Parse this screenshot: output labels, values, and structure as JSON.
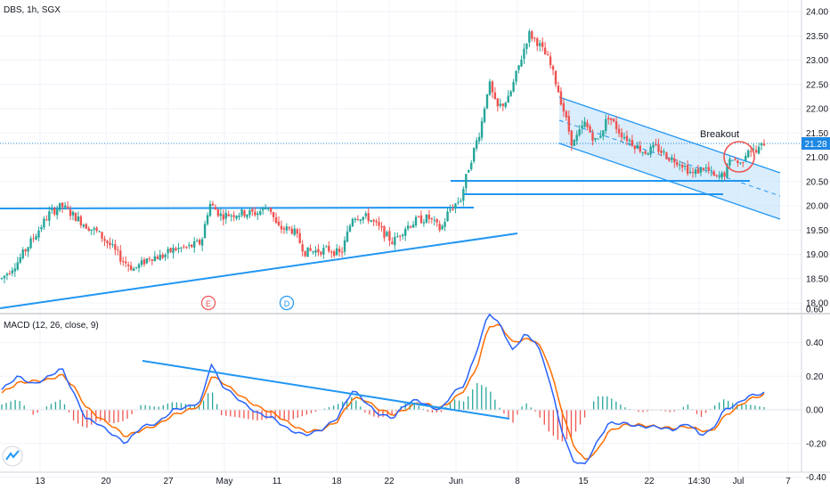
{
  "symbol": {
    "title": "DBS, 1h, SGX"
  },
  "macd": {
    "title": "MACD (12, 26, close, 9)"
  },
  "current_price": {
    "label": "21.28",
    "value": 21.28,
    "color": "#1e88e5"
  },
  "annotations": {
    "breakout": "Breakout",
    "earnings_marker": "E",
    "dividend_marker": "D"
  },
  "colors": {
    "up": "#26a69a",
    "down": "#ef5350",
    "trendline": "#2196f3",
    "macd_line": "#2962ff",
    "signal_line": "#ff6d00",
    "channel_fill": "#bbdefb",
    "marker_red": "#ef5350",
    "marker_blue": "#2196f3"
  },
  "chart_data": [
    {
      "type": "candlestick",
      "title": "DBS, 1h, SGX",
      "y_ticks": [
        "24.00",
        "23.50",
        "23.00",
        "22.50",
        "22.00",
        "21.50",
        "21.00",
        "20.50",
        "20.00",
        "19.50",
        "19.00",
        "18.50",
        "18.00"
      ],
      "ylim": [
        17.9,
        24.05
      ],
      "x_ticks": [
        "13",
        "20",
        "27",
        "May",
        "11",
        "18",
        "22",
        "Jun",
        "8",
        "15",
        "22",
        "14:30",
        "Jul",
        "7"
      ],
      "trend": [
        {
          "w": 0.0,
          "c": 18.5
        },
        {
          "w": 0.02,
          "c": 18.85
        },
        {
          "w": 0.04,
          "c": 19.35
        },
        {
          "w": 0.06,
          "c": 19.85
        },
        {
          "w": 0.075,
          "c": 20.0
        },
        {
          "w": 0.09,
          "c": 19.8
        },
        {
          "w": 0.105,
          "c": 19.6
        },
        {
          "w": 0.12,
          "c": 19.45
        },
        {
          "w": 0.135,
          "c": 19.2
        },
        {
          "w": 0.15,
          "c": 18.9
        },
        {
          "w": 0.165,
          "c": 18.7
        },
        {
          "w": 0.175,
          "c": 18.8
        },
        {
          "w": 0.185,
          "c": 18.95
        },
        {
          "w": 0.2,
          "c": 18.95
        },
        {
          "w": 0.215,
          "c": 19.1
        },
        {
          "w": 0.235,
          "c": 19.15
        },
        {
          "w": 0.25,
          "c": 19.25
        },
        {
          "w": 0.26,
          "c": 20.05
        },
        {
          "w": 0.275,
          "c": 19.8
        },
        {
          "w": 0.3,
          "c": 19.85
        },
        {
          "w": 0.32,
          "c": 19.85
        },
        {
          "w": 0.335,
          "c": 20.0
        },
        {
          "w": 0.345,
          "c": 19.55
        },
        {
          "w": 0.365,
          "c": 19.5
        },
        {
          "w": 0.38,
          "c": 19.05
        },
        {
          "w": 0.41,
          "c": 19.1
        },
        {
          "w": 0.425,
          "c": 19.0
        },
        {
          "w": 0.44,
          "c": 19.8
        },
        {
          "w": 0.46,
          "c": 19.75
        },
        {
          "w": 0.475,
          "c": 19.5
        },
        {
          "w": 0.49,
          "c": 19.25
        },
        {
          "w": 0.505,
          "c": 19.55
        },
        {
          "w": 0.52,
          "c": 19.7
        },
        {
          "w": 0.535,
          "c": 19.75
        },
        {
          "w": 0.55,
          "c": 19.5
        },
        {
          "w": 0.56,
          "c": 19.9
        },
        {
          "w": 0.575,
          "c": 20.15
        },
        {
          "w": 0.585,
          "c": 20.8
        },
        {
          "w": 0.6,
          "c": 21.6
        },
        {
          "w": 0.61,
          "c": 22.55
        },
        {
          "w": 0.62,
          "c": 22.0
        },
        {
          "w": 0.635,
          "c": 22.2
        },
        {
          "w": 0.65,
          "c": 23.0
        },
        {
          "w": 0.66,
          "c": 23.55
        },
        {
          "w": 0.67,
          "c": 23.4
        },
        {
          "w": 0.685,
          "c": 23.0
        },
        {
          "w": 0.695,
          "c": 22.5
        },
        {
          "w": 0.705,
          "c": 21.9
        },
        {
          "w": 0.715,
          "c": 21.25
        },
        {
          "w": 0.73,
          "c": 21.7
        },
        {
          "w": 0.745,
          "c": 21.3
        },
        {
          "w": 0.76,
          "c": 21.85
        },
        {
          "w": 0.775,
          "c": 21.5
        },
        {
          "w": 0.79,
          "c": 21.3
        },
        {
          "w": 0.805,
          "c": 21.1
        },
        {
          "w": 0.82,
          "c": 21.2
        },
        {
          "w": 0.835,
          "c": 21.0
        },
        {
          "w": 0.85,
          "c": 20.9
        },
        {
          "w": 0.865,
          "c": 20.65
        },
        {
          "w": 0.88,
          "c": 20.8
        },
        {
          "w": 0.895,
          "c": 20.55
        },
        {
          "w": 0.905,
          "c": 20.65
        },
        {
          "w": 0.915,
          "c": 21.0
        },
        {
          "w": 0.925,
          "c": 20.85
        },
        {
          "w": 0.935,
          "c": 21.2
        },
        {
          "w": 0.945,
          "c": 21.1
        },
        {
          "w": 0.955,
          "c": 21.3
        }
      ]
    },
    {
      "type": "macd",
      "title": "MACD (12, 26, close, 9)",
      "y_ticks": [
        "0.60",
        "0.40",
        "0.20",
        "0.00",
        "-0.20",
        "-0.40"
      ],
      "ylim": [
        -0.42,
        0.64
      ],
      "series": [
        {
          "points": [
            {
              "w": 0.0,
              "v": 0.12
            },
            {
              "w": 0.02,
              "v": 0.2
            },
            {
              "w": 0.04,
              "v": 0.15
            },
            {
              "w": 0.06,
              "v": 0.2
            },
            {
              "w": 0.075,
              "v": 0.25
            },
            {
              "w": 0.09,
              "v": 0.1
            },
            {
              "w": 0.105,
              "v": -0.05
            },
            {
              "w": 0.12,
              "v": -0.08
            },
            {
              "w": 0.14,
              "v": -0.15
            },
            {
              "w": 0.155,
              "v": -0.2
            },
            {
              "w": 0.175,
              "v": -0.1
            },
            {
              "w": 0.195,
              "v": -0.08
            },
            {
              "w": 0.215,
              "v": 0.0
            },
            {
              "w": 0.235,
              "v": 0.02
            },
            {
              "w": 0.25,
              "v": 0.05
            },
            {
              "w": 0.262,
              "v": 0.28
            },
            {
              "w": 0.275,
              "v": 0.15
            },
            {
              "w": 0.3,
              "v": 0.05
            },
            {
              "w": 0.32,
              "v": -0.02
            },
            {
              "w": 0.34,
              "v": -0.05
            },
            {
              "w": 0.36,
              "v": -0.12
            },
            {
              "w": 0.38,
              "v": -0.15
            },
            {
              "w": 0.4,
              "v": -0.12
            },
            {
              "w": 0.42,
              "v": -0.05
            },
            {
              "w": 0.44,
              "v": 0.12
            },
            {
              "w": 0.455,
              "v": 0.05
            },
            {
              "w": 0.47,
              "v": -0.02
            },
            {
              "w": 0.49,
              "v": -0.05
            },
            {
              "w": 0.505,
              "v": 0.03
            },
            {
              "w": 0.52,
              "v": 0.06
            },
            {
              "w": 0.535,
              "v": 0.02
            },
            {
              "w": 0.55,
              "v": 0.0
            },
            {
              "w": 0.565,
              "v": 0.1
            },
            {
              "w": 0.58,
              "v": 0.15
            },
            {
              "w": 0.595,
              "v": 0.35
            },
            {
              "w": 0.61,
              "v": 0.58
            },
            {
              "w": 0.625,
              "v": 0.5
            },
            {
              "w": 0.64,
              "v": 0.35
            },
            {
              "w": 0.655,
              "v": 0.45
            },
            {
              "w": 0.67,
              "v": 0.4
            },
            {
              "w": 0.685,
              "v": 0.2
            },
            {
              "w": 0.7,
              "v": -0.1
            },
            {
              "w": 0.715,
              "v": -0.3
            },
            {
              "w": 0.73,
              "v": -0.33
            },
            {
              "w": 0.745,
              "v": -0.2
            },
            {
              "w": 0.76,
              "v": -0.08
            },
            {
              "w": 0.78,
              "v": -0.08
            },
            {
              "w": 0.8,
              "v": -0.1
            },
            {
              "w": 0.82,
              "v": -0.1
            },
            {
              "w": 0.84,
              "v": -0.12
            },
            {
              "w": 0.86,
              "v": -0.08
            },
            {
              "w": 0.875,
              "v": -0.15
            },
            {
              "w": 0.89,
              "v": -0.12
            },
            {
              "w": 0.905,
              "v": 0.0
            },
            {
              "w": 0.92,
              "v": 0.03
            },
            {
              "w": 0.935,
              "v": 0.08
            },
            {
              "w": 0.955,
              "v": 0.1
            }
          ]
        },
        {
          "points": [
            {
              "w": 0.0,
              "v": 0.1
            },
            {
              "w": 0.02,
              "v": 0.16
            },
            {
              "w": 0.04,
              "v": 0.17
            },
            {
              "w": 0.06,
              "v": 0.18
            },
            {
              "w": 0.075,
              "v": 0.21
            },
            {
              "w": 0.09,
              "v": 0.14
            },
            {
              "w": 0.105,
              "v": 0.02
            },
            {
              "w": 0.12,
              "v": -0.04
            },
            {
              "w": 0.14,
              "v": -0.1
            },
            {
              "w": 0.155,
              "v": -0.16
            },
            {
              "w": 0.175,
              "v": -0.12
            },
            {
              "w": 0.195,
              "v": -0.09
            },
            {
              "w": 0.215,
              "v": -0.03
            },
            {
              "w": 0.235,
              "v": 0.0
            },
            {
              "w": 0.25,
              "v": 0.03
            },
            {
              "w": 0.262,
              "v": 0.2
            },
            {
              "w": 0.275,
              "v": 0.17
            },
            {
              "w": 0.3,
              "v": 0.08
            },
            {
              "w": 0.32,
              "v": 0.02
            },
            {
              "w": 0.34,
              "v": -0.02
            },
            {
              "w": 0.36,
              "v": -0.08
            },
            {
              "w": 0.38,
              "v": -0.13
            },
            {
              "w": 0.4,
              "v": -0.12
            },
            {
              "w": 0.42,
              "v": -0.07
            },
            {
              "w": 0.44,
              "v": 0.07
            },
            {
              "w": 0.455,
              "v": 0.06
            },
            {
              "w": 0.47,
              "v": 0.01
            },
            {
              "w": 0.49,
              "v": -0.03
            },
            {
              "w": 0.505,
              "v": 0.0
            },
            {
              "w": 0.52,
              "v": 0.04
            },
            {
              "w": 0.535,
              "v": 0.03
            },
            {
              "w": 0.55,
              "v": 0.01
            },
            {
              "w": 0.565,
              "v": 0.06
            },
            {
              "w": 0.58,
              "v": 0.12
            },
            {
              "w": 0.595,
              "v": 0.25
            },
            {
              "w": 0.61,
              "v": 0.5
            },
            {
              "w": 0.625,
              "v": 0.5
            },
            {
              "w": 0.64,
              "v": 0.4
            },
            {
              "w": 0.655,
              "v": 0.42
            },
            {
              "w": 0.67,
              "v": 0.41
            },
            {
              "w": 0.685,
              "v": 0.28
            },
            {
              "w": 0.7,
              "v": 0.02
            },
            {
              "w": 0.715,
              "v": -0.2
            },
            {
              "w": 0.73,
              "v": -0.3
            },
            {
              "w": 0.745,
              "v": -0.25
            },
            {
              "w": 0.76,
              "v": -0.13
            },
            {
              "w": 0.78,
              "v": -0.09
            },
            {
              "w": 0.8,
              "v": -0.09
            },
            {
              "w": 0.82,
              "v": -0.1
            },
            {
              "w": 0.84,
              "v": -0.11
            },
            {
              "w": 0.86,
              "v": -0.1
            },
            {
              "w": 0.875,
              "v": -0.12
            },
            {
              "w": 0.89,
              "v": -0.13
            },
            {
              "w": 0.905,
              "v": -0.04
            },
            {
              "w": 0.92,
              "v": 0.01
            },
            {
              "w": 0.935,
              "v": 0.06
            },
            {
              "w": 0.955,
              "v": 0.09
            }
          ]
        }
      ]
    }
  ]
}
